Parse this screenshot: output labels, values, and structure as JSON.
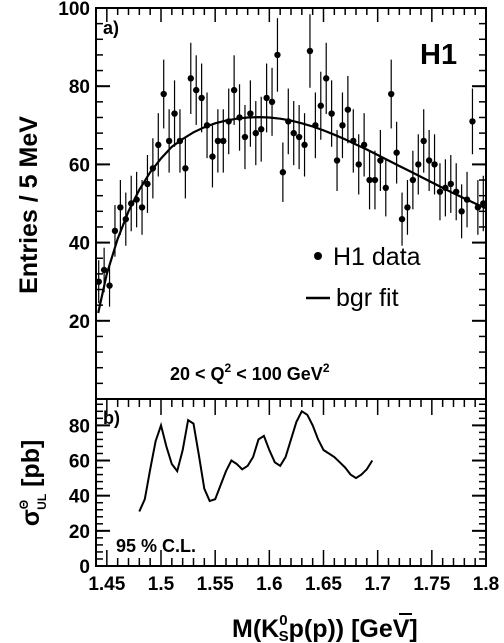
{
  "chart_data": [
    {
      "panel": "a)",
      "type": "scatter",
      "title": "",
      "logo": "H1",
      "ylabel": "Entries / 5 MeV",
      "xlim": [
        1.44,
        1.8
      ],
      "ylim": [
        0,
        100
      ],
      "yticks": [
        0,
        20,
        40,
        60,
        80,
        100
      ],
      "annotation": {
        "pre": "20 < Q",
        "sup1": "2",
        "mid": " < 100 GeV",
        "sup2": "2"
      },
      "legend": {
        "placement": "right",
        "data_label": "H1 data",
        "fit_label": "bgr fit"
      },
      "series": [
        {
          "name": "H1 data",
          "x": [
            1.4425,
            1.4475,
            1.4525,
            1.4575,
            1.4625,
            1.4675,
            1.4725,
            1.4775,
            1.4825,
            1.4875,
            1.4925,
            1.4975,
            1.5025,
            1.5075,
            1.5125,
            1.5175,
            1.5225,
            1.5275,
            1.5325,
            1.5375,
            1.5425,
            1.5475,
            1.5525,
            1.5575,
            1.5625,
            1.5675,
            1.5725,
            1.5775,
            1.5825,
            1.5875,
            1.5925,
            1.5975,
            1.6025,
            1.6075,
            1.6125,
            1.6175,
            1.6225,
            1.6275,
            1.6325,
            1.6375,
            1.6425,
            1.6475,
            1.6525,
            1.6575,
            1.6625,
            1.6675,
            1.6725,
            1.6775,
            1.6825,
            1.6875,
            1.6925,
            1.6975,
            1.7025,
            1.7075,
            1.7125,
            1.7175,
            1.7225,
            1.7275,
            1.7325,
            1.7375,
            1.7425,
            1.7475,
            1.7525,
            1.7575,
            1.7625,
            1.7675,
            1.7725,
            1.7775,
            1.7825,
            1.7875,
            1.7925,
            1.7975
          ],
          "y": [
            30,
            33,
            29,
            43,
            49,
            46,
            50,
            51,
            49,
            55,
            59,
            65,
            78,
            66,
            73,
            66,
            59,
            82,
            79,
            77,
            70,
            62,
            66,
            66,
            71,
            79,
            72,
            67,
            73,
            68,
            69,
            77,
            76,
            88,
            58,
            71,
            68,
            67,
            65,
            89,
            70,
            75,
            82,
            73,
            61,
            70,
            74,
            66,
            60,
            65,
            56,
            56,
            61,
            54,
            78,
            63,
            46,
            49,
            56,
            60,
            66,
            61,
            60,
            53,
            54,
            55,
            53,
            48,
            51,
            71,
            49,
            50
          ],
          "err": [
            5.5,
            5.7,
            5.4,
            6.6,
            7,
            6.8,
            7.1,
            7.1,
            7,
            7.4,
            7.7,
            8.1,
            8.8,
            8.1,
            8.5,
            8.1,
            7.7,
            9.1,
            8.9,
            8.8,
            8.4,
            7.9,
            8.1,
            8.1,
            8.4,
            8.9,
            8.5,
            8.2,
            8.5,
            8.2,
            8.3,
            8.8,
            8.7,
            9.4,
            7.6,
            8.4,
            8.2,
            8.2,
            8.1,
            9.4,
            8.4,
            8.7,
            9.1,
            8.5,
            7.8,
            8.4,
            8.6,
            8.1,
            7.7,
            8.1,
            7.5,
            7.5,
            7.8,
            7.3,
            8.8,
            7.9,
            6.8,
            7,
            7.5,
            7.7,
            8.1,
            7.8,
            7.7,
            7.3,
            7.3,
            7.4,
            7.3,
            6.9,
            7.1,
            8.4,
            7,
            7.1
          ]
        },
        {
          "name": "bgr fit",
          "x": [
            1.442,
            1.45,
            1.46,
            1.47,
            1.48,
            1.49,
            1.5,
            1.51,
            1.52,
            1.53,
            1.54,
            1.55,
            1.56,
            1.57,
            1.58,
            1.59,
            1.6,
            1.61,
            1.62,
            1.63,
            1.64,
            1.65,
            1.66,
            1.67,
            1.68,
            1.69,
            1.7,
            1.71,
            1.72,
            1.73,
            1.74,
            1.75,
            1.76,
            1.77,
            1.78,
            1.79,
            1.8
          ],
          "y": [
            22,
            32,
            41,
            48,
            53.5,
            58,
            61.5,
            64.5,
            66.5,
            68.2,
            69.5,
            70.5,
            71.2,
            71.7,
            72,
            72.1,
            72,
            71.7,
            71.2,
            70.5,
            69.7,
            68.7,
            67.6,
            66.4,
            65.1,
            63.8,
            62.4,
            61,
            59.6,
            58.2,
            56.8,
            55.4,
            54,
            52.6,
            51.3,
            50,
            48.8
          ]
        }
      ]
    },
    {
      "panel": "b)",
      "type": "line",
      "ylabel": {
        "base": "σ",
        "sup": "Θ",
        "sub": "UL",
        "suffix": " [pb]"
      },
      "xlabel": {
        "pre": "M(K",
        "sup": "0",
        "sub": "S",
        "post": "p(",
        "pbar": "p",
        "end": ")) [GeV]"
      },
      "xlim": [
        1.44,
        1.8
      ],
      "ylim": [
        0,
        95
      ],
      "yticks": [
        0,
        20,
        40,
        60,
        80
      ],
      "xticks": [
        1.45,
        1.5,
        1.55,
        1.6,
        1.65,
        1.7,
        1.75,
        1.8
      ],
      "xtick_labels": [
        "1.45",
        "1.5",
        "1.55",
        "1.6",
        "1.65",
        "1.7",
        "1.75",
        "1.8"
      ],
      "annotation": "95 % C.L.",
      "series": [
        {
          "name": "",
          "x": [
            1.48,
            1.485,
            1.49,
            1.495,
            1.5,
            1.505,
            1.51,
            1.515,
            1.52,
            1.525,
            1.53,
            1.535,
            1.54,
            1.545,
            1.55,
            1.555,
            1.56,
            1.565,
            1.57,
            1.575,
            1.58,
            1.585,
            1.59,
            1.595,
            1.6,
            1.605,
            1.61,
            1.615,
            1.62,
            1.625,
            1.63,
            1.635,
            1.64,
            1.645,
            1.65,
            1.655,
            1.66,
            1.665,
            1.67,
            1.675,
            1.68,
            1.685,
            1.69,
            1.695
          ],
          "y": [
            31,
            38,
            55,
            71,
            80,
            68,
            58,
            54,
            66,
            83,
            81,
            63,
            44,
            37,
            38,
            46,
            54,
            60,
            58,
            55,
            57,
            62,
            72,
            74,
            66,
            59,
            57,
            62,
            72,
            82,
            88,
            86,
            80,
            72,
            66,
            64,
            62,
            59,
            56,
            52,
            50,
            52,
            55,
            60
          ]
        }
      ]
    }
  ]
}
